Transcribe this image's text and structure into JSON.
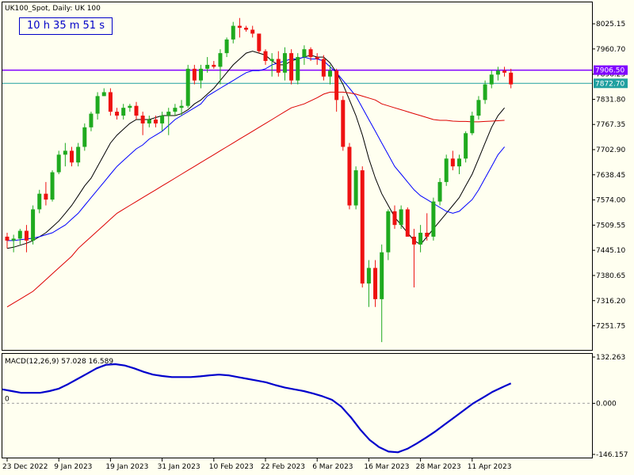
{
  "window": {
    "symbol_title": "UK100_Spot, Daily:  UK 100",
    "timer": "10 h 35 m 51 s"
  },
  "colors": {
    "background": "#fffff0",
    "bull": "#1faa1f",
    "bear": "#ee1111",
    "ma_black": "#000000",
    "ma_blue": "#0000ff",
    "ma_red": "#dd0000",
    "macd": "#0000cc",
    "hline_purple": "#8000ff",
    "hline_teal": "#20a0a0"
  },
  "chart_data": [
    {
      "type": "candlestick",
      "title": "UK100_Spot, Daily:  UK 100",
      "ylim": [
        7190,
        8080
      ],
      "y_ticks": [
        "8025.15",
        "7960.70",
        "7896.25",
        "7831.80",
        "7767.35",
        "7702.90",
        "7638.45",
        "7574.00",
        "7509.55",
        "7445.10",
        "7380.65",
        "7316.20",
        "7251.75"
      ],
      "y_tick_values": [
        8025.15,
        7960.7,
        7896.25,
        7831.8,
        7767.35,
        7702.9,
        7638.45,
        7574.0,
        7509.55,
        7445.1,
        7380.65,
        7316.2,
        7251.75
      ],
      "price_labels": [
        {
          "text": "7906.50",
          "value": 7906.5,
          "color": "#8000ff"
        },
        {
          "text": "7872.70",
          "value": 7872.7,
          "color": "#20a0a0"
        }
      ],
      "x_ticks": [
        "23 Dec 2022",
        "9 Jan 2023",
        "19 Jan 2023",
        "31 Jan 2023",
        "10 Feb 2023",
        "22 Feb 2023",
        "6 Mar 2023",
        "16 Mar 2023",
        "28 Mar 2023",
        "11 Apr 2023"
      ],
      "x_tick_index": [
        0,
        8,
        16,
        24,
        32,
        40,
        48,
        56,
        64,
        72
      ],
      "ohlc": [
        [
          7480,
          7490,
          7450,
          7470
        ],
        [
          7470,
          7485,
          7440,
          7475
        ],
        [
          7475,
          7500,
          7460,
          7495
        ],
        [
          7495,
          7510,
          7440,
          7470
        ],
        [
          7470,
          7560,
          7460,
          7550
        ],
        [
          7550,
          7600,
          7540,
          7590
        ],
        [
          7590,
          7620,
          7560,
          7575
        ],
        [
          7575,
          7650,
          7570,
          7645
        ],
        [
          7645,
          7700,
          7640,
          7690
        ],
        [
          7690,
          7720,
          7660,
          7700
        ],
        [
          7700,
          7710,
          7660,
          7670
        ],
        [
          7670,
          7720,
          7660,
          7710
        ],
        [
          7710,
          7770,
          7700,
          7760
        ],
        [
          7760,
          7800,
          7750,
          7795
        ],
        [
          7795,
          7850,
          7780,
          7840
        ],
        [
          7840,
          7860,
          7840,
          7850
        ],
        [
          7850,
          7860,
          7790,
          7800
        ],
        [
          7800,
          7810,
          7780,
          7790
        ],
        [
          7790,
          7820,
          7780,
          7810
        ],
        [
          7810,
          7820,
          7800,
          7815
        ],
        [
          7815,
          7825,
          7780,
          7790
        ],
        [
          7790,
          7800,
          7740,
          7770
        ],
        [
          7770,
          7790,
          7760,
          7780
        ],
        [
          7780,
          7790,
          7760,
          7770
        ],
        [
          7770,
          7800,
          7750,
          7790
        ],
        [
          7790,
          7810,
          7740,
          7800
        ],
        [
          7800,
          7820,
          7790,
          7810
        ],
        [
          7810,
          7830,
          7790,
          7815
        ],
        [
          7815,
          7920,
          7810,
          7910
        ],
        [
          7910,
          7920,
          7870,
          7880
        ],
        [
          7880,
          7920,
          7860,
          7910
        ],
        [
          7910,
          7940,
          7900,
          7920
        ],
        [
          7920,
          7930,
          7910,
          7915
        ],
        [
          7915,
          7960,
          7870,
          7950
        ],
        [
          7950,
          7990,
          7940,
          7985
        ],
        [
          7985,
          8030,
          7975,
          8020
        ],
        [
          8020,
          8040,
          7990,
          8015
        ],
        [
          8015,
          8020,
          8005,
          8010
        ],
        [
          8010,
          8020,
          7990,
          8000
        ],
        [
          8000,
          8000,
          7950,
          7955
        ],
        [
          7955,
          7960,
          7920,
          7930
        ],
        [
          7930,
          7950,
          7890,
          7935
        ],
        [
          7935,
          7955,
          7890,
          7900
        ],
        [
          7900,
          7965,
          7880,
          7950
        ],
        [
          7950,
          7960,
          7870,
          7880
        ],
        [
          7880,
          7950,
          7870,
          7940
        ],
        [
          7940,
          7970,
          7920,
          7960
        ],
        [
          7960,
          7965,
          7930,
          7940
        ],
        [
          7940,
          7950,
          7920,
          7935
        ],
        [
          7935,
          7945,
          7880,
          7890
        ],
        [
          7890,
          7920,
          7870,
          7905
        ],
        [
          7905,
          7910,
          7800,
          7830
        ],
        [
          7830,
          7840,
          7700,
          7710
        ],
        [
          7710,
          7720,
          7550,
          7560
        ],
        [
          7560,
          7660,
          7550,
          7650
        ],
        [
          7650,
          7660,
          7350,
          7360
        ],
        [
          7360,
          7420,
          7300,
          7400
        ],
        [
          7400,
          7420,
          7300,
          7320
        ],
        [
          7320,
          7460,
          7210,
          7440
        ],
        [
          7440,
          7550,
          7420,
          7545
        ],
        [
          7545,
          7560,
          7500,
          7510
        ],
        [
          7510,
          7560,
          7500,
          7550
        ],
        [
          7550,
          7555,
          7480,
          7480
        ],
        [
          7480,
          7500,
          7350,
          7460
        ],
        [
          7460,
          7510,
          7440,
          7490
        ],
        [
          7490,
          7540,
          7470,
          7480
        ],
        [
          7480,
          7580,
          7470,
          7570
        ],
        [
          7570,
          7630,
          7560,
          7620
        ],
        [
          7620,
          7690,
          7610,
          7680
        ],
        [
          7680,
          7700,
          7650,
          7660
        ],
        [
          7660,
          7690,
          7640,
          7680
        ],
        [
          7680,
          7750,
          7670,
          7745
        ],
        [
          7745,
          7800,
          7740,
          7790
        ],
        [
          7790,
          7840,
          7780,
          7830
        ],
        [
          7830,
          7880,
          7820,
          7870
        ],
        [
          7870,
          7905,
          7860,
          7895
        ],
        [
          7895,
          7915,
          7880,
          7905
        ],
        [
          7905,
          7915,
          7890,
          7900
        ],
        [
          7900,
          7910,
          7860,
          7870
        ]
      ],
      "series": [
        {
          "name": "",
          "color": "#000000",
          "start_index": 0,
          "values": [
            7450,
            7453,
            7458,
            7463,
            7470,
            7480,
            7490,
            7505,
            7520,
            7540,
            7560,
            7585,
            7610,
            7630,
            7660,
            7690,
            7720,
            7740,
            7755,
            7770,
            7780,
            7780,
            7780,
            7785,
            7790,
            7790,
            7790,
            7795,
            7805,
            7820,
            7830,
            7845,
            7860,
            7880,
            7900,
            7920,
            7935,
            7950,
            7955,
            7950,
            7945,
            7930,
            7920,
            7920,
            7930,
            7935,
            7940,
            7945,
            7940,
            7940,
            7925,
            7900,
            7870,
            7830,
            7790,
            7740,
            7680,
            7630,
            7590,
            7560,
            7530,
            7510,
            7490,
            7470,
            7460,
            7480,
            7500,
            7520,
            7540,
            7560,
            7580,
            7610,
            7640,
            7680,
            7720,
            7760,
            7790,
            7810
          ]
        },
        {
          "name": "",
          "color": "#0000ff",
          "start_index": 0,
          "values": [
            7470,
            7470,
            7472,
            7474,
            7476,
            7480,
            7485,
            7490,
            7500,
            7510,
            7525,
            7540,
            7560,
            7580,
            7600,
            7620,
            7640,
            7660,
            7675,
            7690,
            7705,
            7715,
            7730,
            7740,
            7750,
            7765,
            7780,
            7790,
            7800,
            7810,
            7820,
            7840,
            7850,
            7860,
            7870,
            7880,
            7890,
            7900,
            7905,
            7905,
            7910,
            7920,
            7925,
            7930,
            7935,
            7935,
            7940,
            7935,
            7935,
            7930,
            7915,
            7900,
            7880,
            7860,
            7840,
            7810,
            7780,
            7750,
            7720,
            7690,
            7660,
            7640,
            7620,
            7600,
            7585,
            7575,
            7565,
            7555,
            7545,
            7540,
            7545,
            7560,
            7575,
            7600,
            7630,
            7660,
            7690,
            7710
          ]
        },
        {
          "name": "",
          "color": "#dd0000",
          "start_index": 0,
          "values": [
            7300,
            7310,
            7320,
            7330,
            7340,
            7355,
            7370,
            7385,
            7400,
            7415,
            7430,
            7450,
            7465,
            7480,
            7495,
            7510,
            7525,
            7540,
            7550,
            7560,
            7570,
            7580,
            7590,
            7600,
            7610,
            7620,
            7630,
            7640,
            7650,
            7660,
            7670,
            7680,
            7690,
            7700,
            7710,
            7720,
            7730,
            7740,
            7750,
            7760,
            7770,
            7780,
            7790,
            7800,
            7810,
            7815,
            7820,
            7828,
            7836,
            7845,
            7850,
            7850,
            7850,
            7848,
            7845,
            7840,
            7835,
            7830,
            7820,
            7815,
            7810,
            7805,
            7800,
            7795,
            7790,
            7785,
            7780,
            7778,
            7778,
            7776,
            7775,
            7775,
            7774,
            7774,
            7775,
            7776,
            7777,
            7778
          ]
        }
      ]
    },
    {
      "type": "line",
      "title": "MACD(12,26,9) 57.028 16.589",
      "ylim": [
        -146.157,
        132.263
      ],
      "y_ticks": [
        "132.263",
        "0.000",
        "-146.157"
      ],
      "y_tick_values": [
        132.263,
        0,
        -146.157
      ],
      "zero_label": "0",
      "series": [
        {
          "name": "MACD",
          "color": "#0000cc",
          "values": [
            40,
            35,
            30,
            30,
            30,
            35,
            42,
            55,
            70,
            85,
            100,
            110,
            112,
            108,
            100,
            90,
            82,
            78,
            75,
            75,
            75,
            77,
            80,
            82,
            80,
            75,
            70,
            65,
            60,
            52,
            45,
            40,
            35,
            28,
            20,
            10,
            -10,
            -40,
            -75,
            -105,
            -125,
            -138,
            -140,
            -130,
            -115,
            -98,
            -80,
            -60,
            -40,
            -20,
            0,
            16,
            32,
            45,
            57
          ]
        }
      ]
    }
  ]
}
